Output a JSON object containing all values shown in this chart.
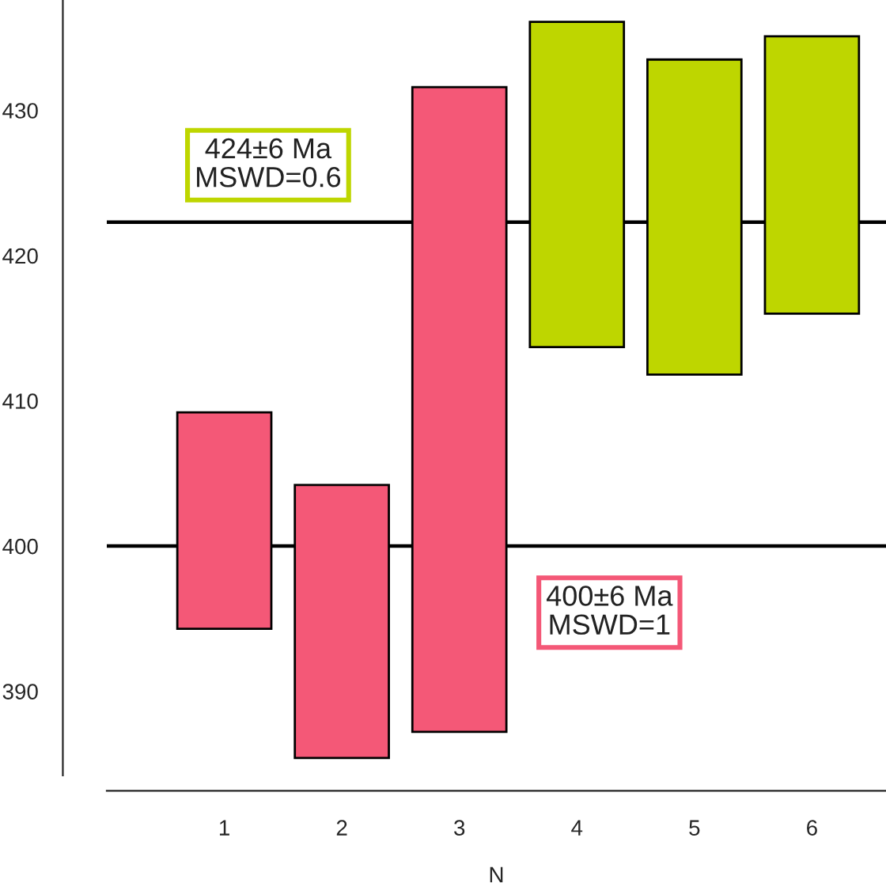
{
  "chart_data": {
    "type": "bar",
    "xlabel": "N",
    "x": [
      1,
      2,
      3,
      4,
      5,
      6
    ],
    "base": [
      394.3,
      385.4,
      387.2,
      413.7,
      411.8,
      416.0
    ],
    "values": [
      14.9,
      18.8,
      44.4,
      22.4,
      21.7,
      19.1
    ],
    "colors": [
      "#f45877",
      "#f45877",
      "#f45877",
      "#bed600",
      "#bed600",
      "#bed600"
    ],
    "xlim": [
      0,
      6.63
    ],
    "xticks": [
      1,
      2,
      3,
      4,
      5,
      6
    ],
    "ylim": [
      384.2,
      437.6
    ],
    "yticks": [
      390,
      400,
      410,
      420,
      430
    ],
    "ref_lines": [
      {
        "axis": "y",
        "value": 422.3,
        "color": "#000000"
      },
      {
        "axis": "y",
        "value": 400,
        "color": "#000000"
      }
    ],
    "annotations": [
      "424±6 Ma\nMSWD=0.6",
      "400±6 Ma\nMSWD=1"
    ],
    "grid": false,
    "legend": false
  }
}
